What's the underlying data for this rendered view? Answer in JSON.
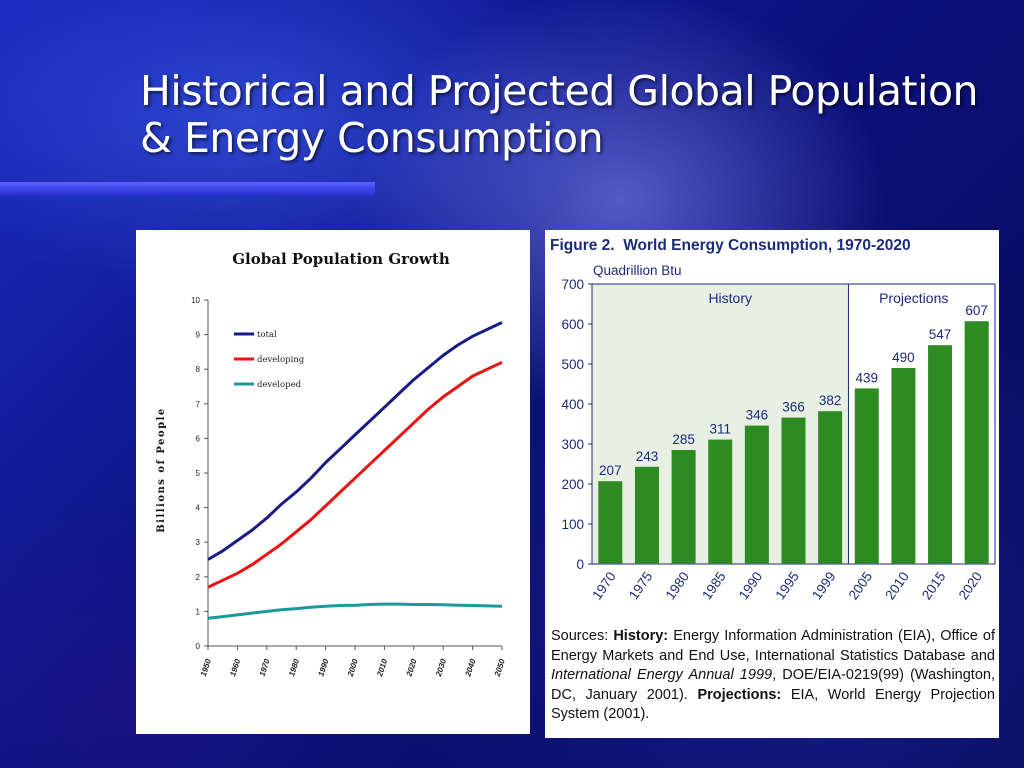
{
  "slide": {
    "title_line1": "Historical and Projected Global Population",
    "title_line2": "& Energy Consumption"
  },
  "colors": {
    "total": "#1a1a88",
    "developing": "#ee1111",
    "developed": "#1a9a9a",
    "bars": "#2e8b22"
  },
  "chart_data": [
    {
      "type": "line",
      "title": "Global Population Growth",
      "xlabel": "",
      "ylabel": "Billions of People",
      "xlim": [
        1950,
        2050
      ],
      "ylim": [
        0,
        10
      ],
      "x_ticks": [
        "1950",
        "1960",
        "1970",
        "1980",
        "1990",
        "2000",
        "2010",
        "2020",
        "2030",
        "2040",
        "2050"
      ],
      "y_ticks": [
        "0",
        "1",
        "2",
        "3",
        "4",
        "5",
        "6",
        "7",
        "8",
        "9",
        "10"
      ],
      "legend_position": "top-left",
      "grid": false,
      "x": [
        1950,
        1955,
        1960,
        1965,
        1970,
        1975,
        1980,
        1985,
        1990,
        1995,
        2000,
        2005,
        2010,
        2015,
        2020,
        2025,
        2030,
        2035,
        2040,
        2045,
        2050
      ],
      "series": [
        {
          "name": "total",
          "values": [
            2.5,
            2.75,
            3.05,
            3.35,
            3.7,
            4.1,
            4.45,
            4.85,
            5.3,
            5.7,
            6.1,
            6.5,
            6.9,
            7.3,
            7.7,
            8.05,
            8.4,
            8.7,
            8.95,
            9.15,
            9.35
          ]
        },
        {
          "name": "developing",
          "values": [
            1.7,
            1.9,
            2.1,
            2.35,
            2.65,
            2.95,
            3.3,
            3.65,
            4.05,
            4.45,
            4.85,
            5.25,
            5.65,
            6.05,
            6.45,
            6.85,
            7.2,
            7.5,
            7.8,
            8.0,
            8.2
          ]
        },
        {
          "name": "developed",
          "values": [
            0.8,
            0.85,
            0.9,
            0.95,
            1.0,
            1.05,
            1.08,
            1.12,
            1.15,
            1.17,
            1.18,
            1.2,
            1.21,
            1.21,
            1.2,
            1.2,
            1.19,
            1.18,
            1.17,
            1.16,
            1.15
          ]
        }
      ]
    },
    {
      "type": "bar",
      "title": "Figure 2.  World Energy Consumption, 1970-2020",
      "ylabel": "Quadrillion Btu",
      "xlabel": "",
      "ylim": [
        0,
        700
      ],
      "y_ticks": [
        "0",
        "100",
        "200",
        "300",
        "400",
        "500",
        "600",
        "700"
      ],
      "categories": [
        "1970",
        "1975",
        "1980",
        "1985",
        "1990",
        "1995",
        "1999",
        "2005",
        "2010",
        "2015",
        "2020"
      ],
      "values": [
        207,
        243,
        285,
        311,
        346,
        366,
        382,
        439,
        490,
        547,
        607
      ],
      "data_labels": [
        "207",
        "243",
        "285",
        "311",
        "346",
        "366",
        "382",
        "439",
        "490",
        "547",
        "607"
      ],
      "regions": [
        {
          "label": "History",
          "from": "1970",
          "to": "1999"
        },
        {
          "label": "Projections",
          "from": "2005",
          "to": "2020"
        }
      ],
      "grid": false
    }
  ],
  "sources": {
    "p1": "Sources: ",
    "b1": "History:",
    "p2": " Energy Information Administration (EIA), Office of Energy Markets and End Use, International Statistics Database and ",
    "i1": "International Energy Annual 1999",
    "p3": ", DOE/EIA-0219(99) (Washington, DC, January 2001). ",
    "b2": "Projections:",
    "p4": " EIA, World Energy Projection System (2001)."
  }
}
